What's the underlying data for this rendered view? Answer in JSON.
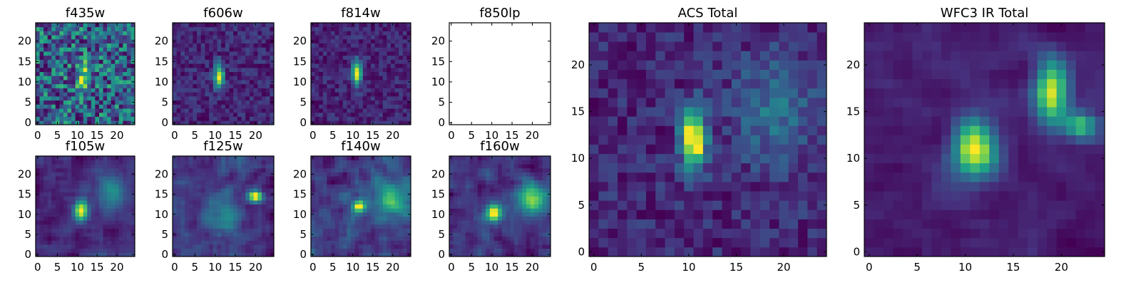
{
  "figure": {
    "colormap": "viridis",
    "colormap_stops": [
      "#440154",
      "#46327e",
      "#365c8d",
      "#277f8e",
      "#1fa187",
      "#4ac16d",
      "#a0da39",
      "#fde725"
    ]
  },
  "chart_data": [
    {
      "type": "heatmap",
      "id": "f435w",
      "title": "f435w",
      "grid": [
        25,
        25
      ],
      "xlim": [
        0,
        24
      ],
      "ylim": [
        0,
        24
      ],
      "xticks": [
        0,
        5,
        10,
        15,
        20
      ],
      "yticks": [
        0,
        5,
        10,
        15,
        20
      ],
      "xtick_labels": [
        "0",
        "5",
        "10",
        "15",
        "20"
      ],
      "ytick_labels": [
        "0",
        "5",
        "10",
        "15",
        "20"
      ],
      "pattern": "noise",
      "empty": false,
      "base": 0.55,
      "noise": 0.22,
      "sources": [
        {
          "x": 11.5,
          "y": 11.5,
          "sx": 1.0,
          "sy": 2.5,
          "amp": 0.35
        }
      ]
    },
    {
      "type": "heatmap",
      "id": "f606w",
      "title": "f606w",
      "grid": [
        25,
        25
      ],
      "xlim": [
        0,
        24
      ],
      "ylim": [
        0,
        24
      ],
      "xticks": [
        0,
        5,
        10,
        15,
        20
      ],
      "yticks": [
        0,
        5,
        10,
        15,
        20
      ],
      "xtick_labels": [
        "0",
        "5",
        "10",
        "15",
        "20"
      ],
      "ytick_labels": [
        "0",
        "5",
        "10",
        "15",
        "20"
      ],
      "pattern": "noise",
      "empty": false,
      "base": 0.22,
      "noise": 0.1,
      "sources": [
        {
          "x": 11,
          "y": 11.5,
          "sx": 0.8,
          "sy": 2.0,
          "amp": 0.75
        }
      ]
    },
    {
      "type": "heatmap",
      "id": "f814w",
      "title": "f814w",
      "grid": [
        25,
        25
      ],
      "xlim": [
        0,
        24
      ],
      "ylim": [
        0,
        24
      ],
      "xticks": [
        0,
        5,
        10,
        15,
        20
      ],
      "yticks": [
        0,
        5,
        10,
        15,
        20
      ],
      "xtick_labels": [
        "0",
        "5",
        "10",
        "15",
        "20"
      ],
      "ytick_labels": [
        "0",
        "5",
        "10",
        "15",
        "20"
      ],
      "pattern": "noise",
      "empty": false,
      "base": 0.15,
      "noise": 0.1,
      "sources": [
        {
          "x": 11,
          "y": 12,
          "sx": 0.8,
          "sy": 2.2,
          "amp": 0.8
        }
      ]
    },
    {
      "type": "heatmap",
      "id": "f850lp",
      "title": "f850lp",
      "grid": [
        25,
        25
      ],
      "xlim": [
        0,
        24
      ],
      "ylim": [
        0,
        24
      ],
      "xticks": [
        0,
        5,
        10,
        15,
        20
      ],
      "yticks": [
        0,
        5,
        10,
        15,
        20
      ],
      "xtick_labels": [
        "0",
        "5",
        "10",
        "15",
        "20"
      ],
      "ytick_labels": [
        "0",
        "5",
        "10",
        "15",
        "20"
      ],
      "pattern": "empty",
      "empty": true,
      "base": 0,
      "noise": 0,
      "sources": []
    },
    {
      "type": "heatmap",
      "id": "f105w",
      "title": "f105w",
      "grid": [
        25,
        25
      ],
      "xlim": [
        0,
        24
      ],
      "ylim": [
        0,
        24
      ],
      "xticks": [
        0,
        5,
        10,
        15,
        20
      ],
      "yticks": [
        0,
        5,
        10,
        15,
        20
      ],
      "xtick_labels": [
        "0",
        "5",
        "10",
        "15",
        "20"
      ],
      "ytick_labels": [
        "0",
        "5",
        "10",
        "15",
        "20"
      ],
      "pattern": "smooth",
      "empty": false,
      "base": 0.25,
      "noise": 0.08,
      "sources": [
        {
          "x": 11,
          "y": 11,
          "sx": 1.2,
          "sy": 1.8,
          "amp": 0.7
        },
        {
          "x": 19,
          "y": 15,
          "sx": 3,
          "sy": 3,
          "amp": 0.3
        }
      ]
    },
    {
      "type": "heatmap",
      "id": "f125w",
      "title": "f125w",
      "grid": [
        25,
        25
      ],
      "xlim": [
        0,
        24
      ],
      "ylim": [
        0,
        24
      ],
      "xticks": [
        0,
        5,
        10,
        15,
        20
      ],
      "yticks": [
        0,
        5,
        10,
        15,
        20
      ],
      "xtick_labels": [
        "0",
        "5",
        "10",
        "15",
        "20"
      ],
      "ytick_labels": [
        "0",
        "5",
        "10",
        "15",
        "20"
      ],
      "pattern": "smooth",
      "empty": false,
      "base": 0.3,
      "noise": 0.08,
      "sources": [
        {
          "x": 20,
          "y": 14.5,
          "sx": 1.2,
          "sy": 1.0,
          "amp": 0.65
        },
        {
          "x": 12,
          "y": 11,
          "sx": 3,
          "sy": 3,
          "amp": 0.2
        }
      ]
    },
    {
      "type": "heatmap",
      "id": "f140w",
      "title": "f140w",
      "grid": [
        25,
        25
      ],
      "xlim": [
        0,
        24
      ],
      "ylim": [
        0,
        24
      ],
      "xticks": [
        0,
        5,
        10,
        15,
        20
      ],
      "yticks": [
        0,
        5,
        10,
        15,
        20
      ],
      "xtick_labels": [
        "0",
        "5",
        "10",
        "15",
        "20"
      ],
      "ytick_labels": [
        "0",
        "5",
        "10",
        "15",
        "20"
      ],
      "pattern": "smooth",
      "empty": false,
      "base": 0.3,
      "noise": 0.1,
      "sources": [
        {
          "x": 11.5,
          "y": 12,
          "sx": 1.0,
          "sy": 1.0,
          "amp": 0.6
        },
        {
          "x": 20,
          "y": 14,
          "sx": 4,
          "sy": 3,
          "amp": 0.35
        }
      ]
    },
    {
      "type": "heatmap",
      "id": "f160w",
      "title": "f160w",
      "grid": [
        25,
        25
      ],
      "xlim": [
        0,
        24
      ],
      "ylim": [
        0,
        24
      ],
      "xticks": [
        0,
        5,
        10,
        15,
        20
      ],
      "yticks": [
        0,
        5,
        10,
        15,
        20
      ],
      "xtick_labels": [
        "0",
        "5",
        "10",
        "15",
        "20"
      ],
      "ytick_labels": [
        "0",
        "5",
        "10",
        "15",
        "20"
      ],
      "pattern": "smooth",
      "empty": false,
      "base": 0.28,
      "noise": 0.08,
      "sources": [
        {
          "x": 10.5,
          "y": 10.5,
          "sx": 1.3,
          "sy": 1.6,
          "amp": 0.6
        },
        {
          "x": 20,
          "y": 14,
          "sx": 2.5,
          "sy": 2.5,
          "amp": 0.45
        }
      ]
    },
    {
      "type": "heatmap",
      "id": "acs_total",
      "title": "ACS Total",
      "grid": [
        25,
        25
      ],
      "xlim": [
        0,
        24
      ],
      "ylim": [
        0,
        24
      ],
      "xticks": [
        0,
        5,
        10,
        15,
        20
      ],
      "yticks": [
        0,
        5,
        10,
        15,
        20
      ],
      "xtick_labels": [
        "0",
        "5",
        "10",
        "15",
        "20"
      ],
      "ytick_labels": [
        "0",
        "5",
        "10",
        "15",
        "20"
      ],
      "pattern": "noise",
      "empty": false,
      "base": 0.22,
      "noise": 0.09,
      "sources": [
        {
          "x": 10.5,
          "y": 12,
          "sx": 0.9,
          "sy": 2.2,
          "amp": 0.8
        },
        {
          "x": 19,
          "y": 15,
          "sx": 3,
          "sy": 4,
          "amp": 0.2
        }
      ]
    },
    {
      "type": "heatmap",
      "id": "wfc3_ir_total",
      "title": "WFC3 IR Total",
      "grid": [
        25,
        25
      ],
      "xlim": [
        0,
        24
      ],
      "ylim": [
        0,
        24
      ],
      "xticks": [
        0,
        5,
        10,
        15,
        20
      ],
      "yticks": [
        0,
        5,
        10,
        15,
        20
      ],
      "xtick_labels": [
        "0",
        "5",
        "10",
        "15",
        "20"
      ],
      "ytick_labels": [
        "0",
        "5",
        "10",
        "15",
        "20"
      ],
      "pattern": "smooth",
      "empty": false,
      "base": 0.22,
      "noise": 0.05,
      "sources": [
        {
          "x": 11,
          "y": 11,
          "sx": 1.5,
          "sy": 2.2,
          "amp": 0.65
        },
        {
          "x": 19,
          "y": 17,
          "sx": 1.2,
          "sy": 2.5,
          "amp": 0.6
        },
        {
          "x": 22,
          "y": 13.5,
          "sx": 1.2,
          "sy": 1.0,
          "amp": 0.45
        }
      ]
    }
  ]
}
